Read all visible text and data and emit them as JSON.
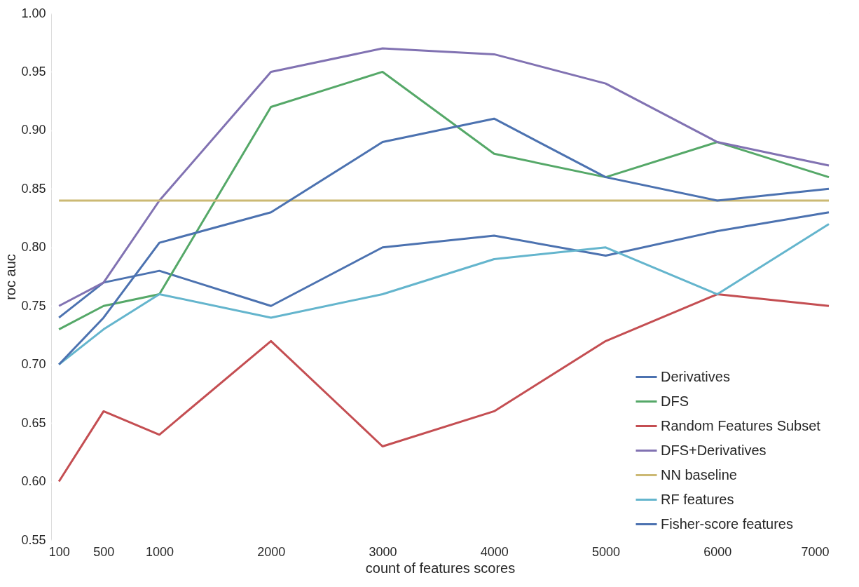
{
  "chart_data": {
    "type": "line",
    "xlabel": "count of features scores",
    "ylabel": "roc auc",
    "x": [
      100,
      500,
      1000,
      2000,
      3000,
      4000,
      5000,
      6000,
      7000
    ],
    "xlim": [
      30,
      7000
    ],
    "xticks": [
      100,
      500,
      1000,
      2000,
      3000,
      4000,
      5000,
      6000,
      7000
    ],
    "ylim": [
      0.55,
      1.0
    ],
    "yticks": [
      0.55,
      {
        "value": 0.6,
        "label": "0.60"
      },
      0.65,
      {
        "value": 0.7,
        "label": "0.70"
      },
      0.75,
      {
        "value": 0.8,
        "label": "0.80"
      },
      0.85,
      {
        "value": 0.9,
        "label": "0.90"
      },
      0.95,
      {
        "value": 1.0,
        "label": "1.00"
      }
    ],
    "grid": true,
    "legend": "bottom right",
    "marker": "none",
    "line_style": "solid",
    "series": [
      {
        "name": "Derivatives",
        "color": "#4c72b0",
        "values": [
          0.74,
          0.77,
          0.78,
          0.75,
          0.8,
          0.81,
          0.793,
          0.814,
          0.83
        ]
      },
      {
        "name": "DFS",
        "color": "#55a868",
        "values": [
          0.73,
          0.75,
          0.76,
          0.92,
          0.95,
          0.88,
          0.86,
          0.89,
          0.86
        ]
      },
      {
        "name": "Random Features Subset",
        "color": "#c44e52",
        "values": [
          0.6,
          0.66,
          0.64,
          0.72,
          0.63,
          0.66,
          0.72,
          0.76,
          0.75
        ]
      },
      {
        "name": "DFS+Derivatives",
        "color": "#8172b2",
        "values": [
          0.75,
          0.77,
          0.84,
          0.95,
          0.97,
          0.965,
          0.94,
          0.89,
          0.87
        ]
      },
      {
        "name": "NN baseline",
        "color": "#ccb974",
        "values": [
          0.84,
          0.84,
          0.84,
          0.84,
          0.84,
          0.84,
          0.84,
          0.84,
          0.84
        ]
      },
      {
        "name": "RF features",
        "color": "#64b5cd",
        "values": [
          0.7,
          0.73,
          0.76,
          0.74,
          0.76,
          0.79,
          0.8,
          0.76,
          0.82
        ]
      },
      {
        "name": "Fisher-score features",
        "color": "#4c72b0",
        "values": [
          0.7,
          0.74,
          0.804,
          0.83,
          0.89,
          0.91,
          0.86,
          0.84,
          0.85
        ]
      }
    ]
  }
}
